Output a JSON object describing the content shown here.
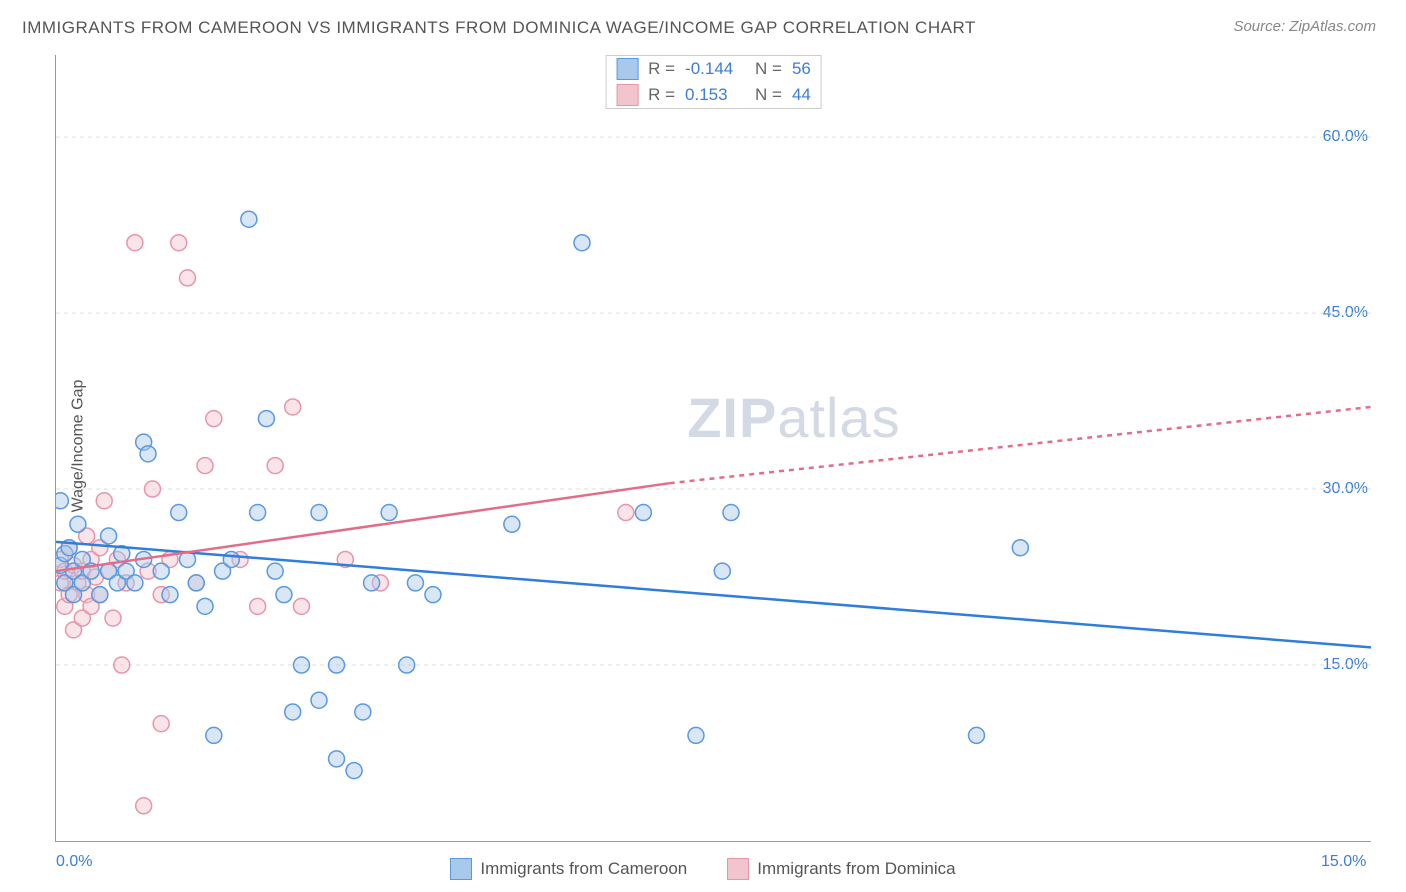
{
  "title": "IMMIGRANTS FROM CAMEROON VS IMMIGRANTS FROM DOMINICA WAGE/INCOME GAP CORRELATION CHART",
  "source": "Source: ZipAtlas.com",
  "y_axis_label": "Wage/Income Gap",
  "watermark_bold": "ZIP",
  "watermark_rest": "atlas",
  "chart": {
    "type": "scatter",
    "x_domain": [
      0,
      15
    ],
    "y_domain": [
      0,
      67
    ],
    "x_ticks": [
      {
        "v": 0,
        "label": "0.0%"
      },
      {
        "v": 15,
        "label": "15.0%"
      }
    ],
    "y_ticks": [
      {
        "v": 15,
        "label": "15.0%"
      },
      {
        "v": 30,
        "label": "30.0%"
      },
      {
        "v": 45,
        "label": "45.0%"
      },
      {
        "v": 60,
        "label": "60.0%"
      }
    ],
    "grid_color": "#dddddd",
    "background_color": "#ffffff",
    "marker_radius": 8,
    "series": [
      {
        "id": "cameroon",
        "label": "Immigrants from Cameroon",
        "r_value": "-0.144",
        "n_value": "56",
        "fill": "#a8c8ec",
        "stroke": "#5a99e0",
        "trend_color": "#2f7ed8",
        "trend": {
          "x1": 0,
          "y1": 25.5,
          "x2": 15,
          "y2": 16.5,
          "dash_after": 15
        },
        "points": [
          [
            0.05,
            29
          ],
          [
            0.05,
            23.5
          ],
          [
            0.1,
            24.5
          ],
          [
            0.1,
            22
          ],
          [
            0.15,
            25
          ],
          [
            0.2,
            21
          ],
          [
            0.2,
            23
          ],
          [
            0.25,
            27
          ],
          [
            0.3,
            24
          ],
          [
            0.3,
            22
          ],
          [
            0.4,
            23
          ],
          [
            0.5,
            21
          ],
          [
            0.6,
            26
          ],
          [
            0.6,
            23
          ],
          [
            0.7,
            22
          ],
          [
            0.75,
            24.5
          ],
          [
            0.8,
            23
          ],
          [
            0.9,
            22
          ],
          [
            1.0,
            34
          ],
          [
            1.0,
            24
          ],
          [
            1.05,
            33
          ],
          [
            1.2,
            23
          ],
          [
            1.3,
            21
          ],
          [
            1.4,
            28
          ],
          [
            1.5,
            24
          ],
          [
            1.6,
            22
          ],
          [
            1.7,
            20
          ],
          [
            1.8,
            9
          ],
          [
            1.9,
            23
          ],
          [
            2.0,
            24
          ],
          [
            2.2,
            53
          ],
          [
            2.3,
            28
          ],
          [
            2.4,
            36
          ],
          [
            2.5,
            23
          ],
          [
            2.6,
            21
          ],
          [
            2.7,
            11
          ],
          [
            2.8,
            15
          ],
          [
            3.0,
            28
          ],
          [
            3.0,
            12
          ],
          [
            3.2,
            15
          ],
          [
            3.2,
            7
          ],
          [
            3.4,
            6
          ],
          [
            3.5,
            11
          ],
          [
            3.6,
            22
          ],
          [
            3.8,
            28
          ],
          [
            4.0,
            15
          ],
          [
            4.1,
            22
          ],
          [
            4.3,
            21
          ],
          [
            5.2,
            27
          ],
          [
            6.0,
            51
          ],
          [
            6.7,
            28
          ],
          [
            7.3,
            9
          ],
          [
            7.6,
            23
          ],
          [
            7.7,
            28
          ],
          [
            10.5,
            9
          ],
          [
            11.0,
            25
          ]
        ]
      },
      {
        "id": "dominica",
        "label": "Immigrants from Dominica",
        "r_value": "0.153",
        "n_value": "44",
        "fill": "#f2c5ce",
        "stroke": "#e895a8",
        "trend_color": "#e36d88",
        "trend": {
          "x1": 0,
          "y1": 23,
          "x2": 7.0,
          "y2": 30.5,
          "dash_after": 7.0,
          "x3": 15,
          "y3": 37
        },
        "points": [
          [
            0.05,
            22
          ],
          [
            0.05,
            24
          ],
          [
            0.1,
            20
          ],
          [
            0.1,
            23
          ],
          [
            0.15,
            21
          ],
          [
            0.15,
            25
          ],
          [
            0.2,
            18
          ],
          [
            0.2,
            23.5
          ],
          [
            0.25,
            22
          ],
          [
            0.3,
            19
          ],
          [
            0.3,
            23
          ],
          [
            0.35,
            26
          ],
          [
            0.35,
            21
          ],
          [
            0.4,
            24
          ],
          [
            0.4,
            20
          ],
          [
            0.45,
            22.5
          ],
          [
            0.5,
            25
          ],
          [
            0.5,
            21
          ],
          [
            0.55,
            29
          ],
          [
            0.6,
            23
          ],
          [
            0.65,
            19
          ],
          [
            0.7,
            24
          ],
          [
            0.75,
            15
          ],
          [
            0.8,
            22
          ],
          [
            0.9,
            51
          ],
          [
            1.0,
            3
          ],
          [
            1.05,
            23
          ],
          [
            1.1,
            30
          ],
          [
            1.2,
            21
          ],
          [
            1.2,
            10
          ],
          [
            1.3,
            24
          ],
          [
            1.4,
            51
          ],
          [
            1.5,
            48
          ],
          [
            1.6,
            22
          ],
          [
            1.7,
            32
          ],
          [
            1.8,
            36
          ],
          [
            2.1,
            24
          ],
          [
            2.3,
            20
          ],
          [
            2.5,
            32
          ],
          [
            2.7,
            37
          ],
          [
            2.8,
            20
          ],
          [
            3.3,
            24
          ],
          [
            3.7,
            22
          ],
          [
            6.5,
            28
          ]
        ]
      }
    ],
    "top_legend_r_label": "R =",
    "top_legend_n_label": "N ="
  }
}
